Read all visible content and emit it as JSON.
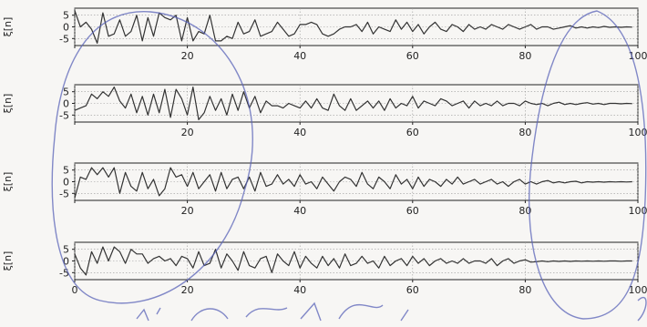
{
  "chart_data": [
    {
      "type": "line",
      "ylabel": "ξ[n]",
      "xlim": [
        0,
        100
      ],
      "ylim": [
        -8,
        8
      ],
      "yticks": [
        5,
        0,
        -5
      ],
      "xticks": [
        0,
        20,
        40,
        60,
        80,
        100
      ],
      "xtick_labels": [
        "",
        "20",
        "40",
        "60",
        "80",
        "100"
      ],
      "grid": true,
      "series": [
        {
          "x": [
            0,
            1,
            2,
            3,
            4,
            5,
            6,
            7,
            8,
            9,
            10,
            11,
            12,
            13,
            14,
            15,
            16,
            17,
            18,
            19,
            20,
            21,
            22,
            23,
            24,
            25,
            26,
            27,
            28,
            29,
            30,
            31,
            32,
            33,
            34,
            35,
            36,
            37,
            38,
            39,
            40,
            41,
            42,
            43,
            44,
            45,
            46,
            47,
            48,
            49,
            50,
            51,
            52,
            53,
            54,
            55,
            56,
            57,
            58,
            59,
            60,
            61,
            62,
            63,
            64,
            65,
            66,
            67,
            68,
            69,
            70,
            71,
            72,
            73,
            74,
            75,
            76,
            77,
            78,
            79,
            80,
            81,
            82,
            83,
            84,
            85,
            86,
            87,
            88,
            89,
            90,
            91,
            92,
            93,
            94,
            95,
            96,
            97,
            98,
            99
          ],
          "values": [
            7,
            0,
            2,
            -1,
            -7,
            6,
            -4,
            -3,
            3,
            -4,
            -2,
            5,
            -6,
            4,
            -4,
            6,
            4,
            3,
            5,
            -6,
            4,
            -6,
            -2,
            -3,
            5,
            -6,
            -6,
            -4,
            -5,
            2,
            -3,
            -2,
            3,
            -4,
            -3,
            -2,
            2,
            -1,
            -4,
            -3,
            1,
            1,
            2,
            1,
            -3,
            -4,
            -3,
            -1,
            0,
            0,
            1,
            -2,
            2,
            -3,
            0,
            -1,
            -2,
            3,
            -1,
            2,
            -2,
            1,
            -3,
            0,
            2,
            -1,
            -2,
            1,
            0,
            -2,
            1,
            -1,
            0,
            -1,
            1,
            0,
            -1,
            1,
            0,
            -1,
            0,
            1,
            -1,
            0,
            0,
            -1,
            -0.5,
            0,
            0.5,
            -0.5,
            0,
            -0.5,
            0,
            -0.3,
            0.2,
            -0.2,
            0,
            -0.2,
            0,
            -0.1
          ]
        }
      ]
    },
    {
      "type": "line",
      "ylabel": "ξ[n]",
      "xlim": [
        0,
        100
      ],
      "ylim": [
        -8,
        8
      ],
      "yticks": [
        5,
        0,
        -5
      ],
      "xticks": [
        0,
        20,
        40,
        60,
        80,
        100
      ],
      "xtick_labels": [
        "",
        "20",
        "40",
        "60",
        "80",
        "100"
      ],
      "grid": true,
      "series": [
        {
          "x": [
            0,
            1,
            2,
            3,
            4,
            5,
            6,
            7,
            8,
            9,
            10,
            11,
            12,
            13,
            14,
            15,
            16,
            17,
            18,
            19,
            20,
            21,
            22,
            23,
            24,
            25,
            26,
            27,
            28,
            29,
            30,
            31,
            32,
            33,
            34,
            35,
            36,
            37,
            38,
            39,
            40,
            41,
            42,
            43,
            44,
            45,
            46,
            47,
            48,
            49,
            50,
            51,
            52,
            53,
            54,
            55,
            56,
            57,
            58,
            59,
            60,
            61,
            62,
            63,
            64,
            65,
            66,
            67,
            68,
            69,
            70,
            71,
            72,
            73,
            74,
            75,
            76,
            77,
            78,
            79,
            80,
            81,
            82,
            83,
            84,
            85,
            86,
            87,
            88,
            89,
            90,
            91,
            92,
            93,
            94,
            95,
            96,
            97,
            98,
            99
          ],
          "values": [
            -3,
            -2,
            -1,
            4,
            2,
            5,
            3,
            7,
            1,
            -2,
            4,
            -4,
            3,
            -5,
            4,
            -4,
            6,
            -6,
            6,
            2,
            -5,
            7,
            -7,
            -4,
            3,
            -3,
            2,
            -5,
            4,
            -3,
            5,
            -2,
            3,
            -4,
            1,
            -1,
            -1,
            -2,
            0,
            -1,
            -2,
            1,
            -2,
            2,
            -2,
            -3,
            4,
            -1,
            -3,
            2,
            -3,
            -1,
            1,
            -2,
            1,
            -3,
            2,
            -2,
            0,
            -1,
            3,
            -2,
            1,
            0,
            -1,
            2,
            1,
            -1,
            0,
            1,
            -2,
            1,
            -1,
            0,
            -1,
            1,
            -1,
            0,
            0,
            -1,
            1,
            0,
            -0.5,
            0,
            -1,
            0,
            0.5,
            -0.5,
            0,
            -0.5,
            0,
            0.3,
            -0.3,
            0,
            -0.5,
            0,
            0,
            -0.2,
            0,
            -0.1
          ]
        }
      ]
    },
    {
      "type": "line",
      "ylabel": "ξ[n]",
      "xlim": [
        0,
        100
      ],
      "ylim": [
        -8,
        8
      ],
      "yticks": [
        5,
        0,
        -5
      ],
      "xticks": [
        0,
        20,
        40,
        60,
        80,
        100
      ],
      "xtick_labels": [
        "",
        "20",
        "40",
        "60",
        "80",
        "100"
      ],
      "grid": true,
      "series": [
        {
          "x": [
            0,
            1,
            2,
            3,
            4,
            5,
            6,
            7,
            8,
            9,
            10,
            11,
            12,
            13,
            14,
            15,
            16,
            17,
            18,
            19,
            20,
            21,
            22,
            23,
            24,
            25,
            26,
            27,
            28,
            29,
            30,
            31,
            32,
            33,
            34,
            35,
            36,
            37,
            38,
            39,
            40,
            41,
            42,
            43,
            44,
            45,
            46,
            47,
            48,
            49,
            50,
            51,
            52,
            53,
            54,
            55,
            56,
            57,
            58,
            59,
            60,
            61,
            62,
            63,
            64,
            65,
            66,
            67,
            68,
            69,
            70,
            71,
            72,
            73,
            74,
            75,
            76,
            77,
            78,
            79,
            80,
            81,
            82,
            83,
            84,
            85,
            86,
            87,
            88,
            89,
            90,
            91,
            92,
            93,
            94,
            95,
            96,
            97,
            98,
            99
          ],
          "values": [
            -7,
            2,
            1,
            6,
            3,
            6,
            2,
            6,
            -5,
            4,
            -2,
            -4,
            4,
            -3,
            1,
            -6,
            -3,
            6,
            2,
            3,
            -2,
            4,
            -3,
            0,
            3,
            -4,
            4,
            -3,
            1,
            2,
            -3,
            2,
            -4,
            4,
            -2,
            -1,
            3,
            -1,
            1,
            -2,
            3,
            -1,
            0,
            -3,
            2,
            -1,
            -4,
            0,
            2,
            1,
            -2,
            4,
            -1,
            -3,
            2,
            0,
            -3,
            3,
            -1,
            1,
            -3,
            2,
            -2,
            1,
            0,
            -2,
            1,
            -1,
            2,
            -1,
            0,
            1,
            -1,
            0,
            1,
            -1,
            0,
            -2,
            0,
            1,
            -1,
            0,
            -1,
            0,
            0.5,
            -0.5,
            0,
            -0.5,
            0,
            0.2,
            -0.5,
            0,
            -0.2,
            0,
            -0.2,
            0,
            -0.1,
            0,
            -0.1,
            0
          ]
        }
      ]
    },
    {
      "type": "line",
      "ylabel": "ξ[n]",
      "xlim": [
        0,
        100
      ],
      "ylim": [
        -8,
        8
      ],
      "yticks": [
        5,
        0,
        -5
      ],
      "xticks": [
        0,
        20,
        40,
        60,
        80,
        100
      ],
      "xtick_labels": [
        "0",
        "20",
        "40",
        "60",
        "80",
        "100"
      ],
      "grid": true,
      "series": [
        {
          "x": [
            0,
            1,
            2,
            3,
            4,
            5,
            6,
            7,
            8,
            9,
            10,
            11,
            12,
            13,
            14,
            15,
            16,
            17,
            18,
            19,
            20,
            21,
            22,
            23,
            24,
            25,
            26,
            27,
            28,
            29,
            30,
            31,
            32,
            33,
            34,
            35,
            36,
            37,
            38,
            39,
            40,
            41,
            42,
            43,
            44,
            45,
            46,
            47,
            48,
            49,
            50,
            51,
            52,
            53,
            54,
            55,
            56,
            57,
            58,
            59,
            60,
            61,
            62,
            63,
            64,
            65,
            66,
            67,
            68,
            69,
            70,
            71,
            72,
            73,
            74,
            75,
            76,
            77,
            78,
            79,
            80,
            81,
            82,
            83,
            84,
            85,
            86,
            87,
            88,
            89,
            90,
            91,
            92,
            93,
            94,
            95,
            96,
            97,
            98,
            99
          ],
          "values": [
            3,
            -3,
            -6,
            4,
            -1,
            6,
            0,
            6,
            4,
            -1,
            5,
            3,
            3,
            -1,
            1,
            2,
            0,
            1,
            -2,
            2,
            1,
            -3,
            4,
            -2,
            -1,
            5,
            -3,
            3,
            0,
            -4,
            4,
            -2,
            -3,
            1,
            2,
            -5,
            3,
            0,
            -2,
            4,
            -3,
            2,
            -1,
            -3,
            2,
            -2,
            1,
            -3,
            3,
            -2,
            -1,
            2,
            -1,
            0,
            -3,
            2,
            -2,
            0,
            1,
            -2,
            2,
            -1,
            1,
            -2,
            0,
            1,
            -1,
            0,
            -1,
            1,
            -1,
            0,
            0,
            -1,
            1,
            -2,
            0,
            1,
            -1,
            0,
            0.5,
            -0.5,
            -0.3,
            0,
            -0.3,
            0,
            -0.2,
            0,
            -0.2,
            0,
            -0.1,
            0,
            -0.1,
            0,
            -0.1,
            0,
            0,
            -0.1,
            0,
            0
          ]
        }
      ]
    }
  ]
}
